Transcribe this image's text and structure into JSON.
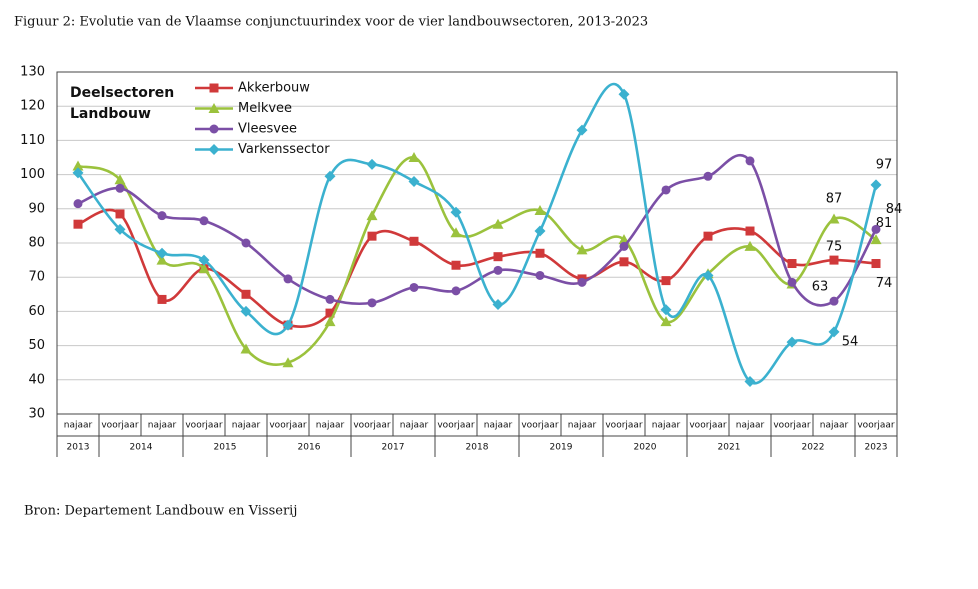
{
  "chart_data": {
    "type": "line",
    "title": "Figuur 2: Evolutie van de Vlaamse conjunctuurindex voor de vier landbouwsectoren, 2013-2023",
    "legend_title": [
      "Deelsectoren",
      "Landbouw"
    ],
    "source": "Bron: Departement Landbouw en Visserij",
    "categories": [
      "najaar",
      "voorjaar",
      "najaar",
      "voorjaar",
      "najaar",
      "voorjaar",
      "najaar",
      "voorjaar",
      "najaar",
      "voorjaar",
      "najaar",
      "voorjaar",
      "najaar",
      "voorjaar",
      "najaar",
      "voorjaar",
      "najaar",
      "voorjaar",
      "najaar",
      "voorjaar"
    ],
    "years": [
      "2013",
      "2014",
      "2015",
      "2016",
      "2017",
      "2018",
      "2019",
      "2020",
      "2021",
      "2022",
      "2023"
    ],
    "ylim": [
      30,
      130
    ],
    "yticks": [
      30,
      40,
      50,
      60,
      70,
      80,
      90,
      100,
      110,
      120,
      130
    ],
    "grid": true,
    "series": [
      {
        "name": "Akkerbouw",
        "color": "#d0393a",
        "marker": "square",
        "values": [
          85.5,
          88.5,
          63.5,
          72.5,
          65,
          56,
          59.5,
          82,
          80.5,
          73.5,
          76,
          77,
          69.5,
          74.5,
          69,
          82,
          83.5,
          74,
          75,
          74
        ]
      },
      {
        "name": "Melkvee",
        "color": "#9bc23d",
        "marker": "triangle",
        "values": [
          102.5,
          98.5,
          75,
          72.5,
          49,
          45,
          57,
          88,
          105,
          83,
          85.5,
          89.5,
          78,
          81,
          57,
          71,
          79,
          68,
          87,
          81
        ]
      },
      {
        "name": "Vleesvee",
        "color": "#7b4fa6",
        "marker": "circle",
        "values": [
          91.5,
          96,
          88,
          86.5,
          80,
          69.5,
          63.5,
          62.5,
          67,
          66,
          72,
          70.5,
          68.5,
          79,
          95.5,
          99.5,
          104,
          68.5,
          63,
          84
        ]
      },
      {
        "name": "Varkenssector",
        "color": "#3bb1cf",
        "marker": "diamond",
        "values": [
          100.5,
          84,
          77,
          75,
          60,
          56,
          99.5,
          103,
          98,
          89,
          62,
          83.5,
          113,
          123.5,
          60.5,
          70.5,
          39.5,
          51,
          54,
          97
        ]
      }
    ]
  }
}
